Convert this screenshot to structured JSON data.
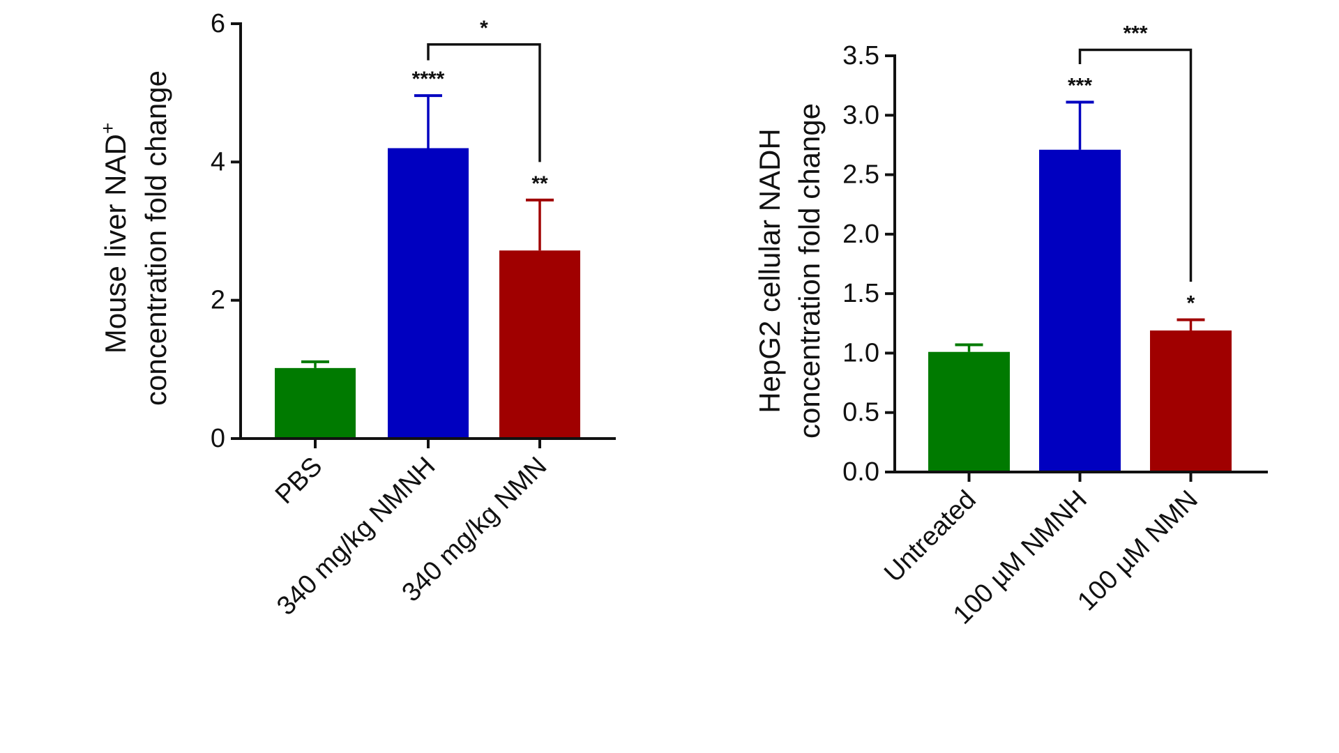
{
  "chart_data": [
    {
      "type": "bar",
      "ylabel_line1": "Mouse liver NAD",
      "ylabel_sup": "+",
      "ylabel_line2": "concentration fold change",
      "xlabel": "",
      "ylim": [
        0,
        6
      ],
      "yticks": [
        "0",
        "2",
        "4",
        "6"
      ],
      "ytick_values": [
        0,
        2,
        4,
        6
      ],
      "categories": [
        "PBS",
        "340 mg/kg NMNH",
        "340 mg/kg NMN"
      ],
      "values": [
        1.02,
        4.2,
        2.72
      ],
      "error_upper": [
        1.11,
        4.96,
        3.45
      ],
      "colors": [
        "#007a00",
        "#0000c0",
        "#a00000"
      ],
      "significance": [
        "",
        "****",
        "**"
      ],
      "bracket": {
        "from": 1,
        "to": 2,
        "label": "*",
        "level": 5.7,
        "left_end": 5.47,
        "right_end": 4.0
      },
      "grid": false,
      "legend": "none"
    },
    {
      "type": "bar",
      "ylabel_line1": "HepG2 cellular NADH",
      "ylabel_sup": "",
      "ylabel_line2": "concentration fold change",
      "xlabel": "",
      "ylim": [
        0,
        3.5
      ],
      "yticks": [
        "0.0",
        "0.5",
        "1.0",
        "1.5",
        "2.0",
        "2.5",
        "3.0",
        "3.5"
      ],
      "ytick_values": [
        0,
        0.5,
        1,
        1.5,
        2,
        2.5,
        3,
        3.5
      ],
      "categories": [
        "Untreated",
        "100 µM NMNH",
        "100 µM NMN"
      ],
      "values": [
        1.01,
        2.71,
        1.19
      ],
      "error_upper": [
        1.07,
        3.11,
        1.28
      ],
      "colors": [
        "#007a00",
        "#0000c0",
        "#a00000"
      ],
      "significance": [
        "",
        "***",
        "*"
      ],
      "bracket": {
        "from": 1,
        "to": 2,
        "label": "***",
        "level": 3.55,
        "left_end": 3.43,
        "right_end": 1.6
      },
      "grid": false,
      "legend": "none"
    }
  ]
}
